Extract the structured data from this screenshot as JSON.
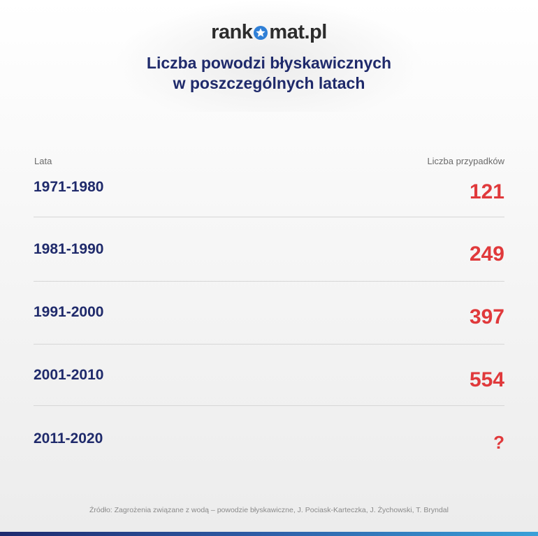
{
  "brand": {
    "logo_left": "rank",
    "logo_right": "mat.pl",
    "logo_star_icon": "star-in-circle-icon"
  },
  "title": {
    "line1": "Liczba powodzi błyskawicznych",
    "line2": "w poszczególnych latach"
  },
  "chart_data": {
    "type": "table",
    "title": "Liczba powodzi błyskawicznych w poszczególnych latach",
    "columns": [
      "Lata",
      "Liczba przypadków"
    ],
    "rows": [
      {
        "period": "1971-1980",
        "value": "121"
      },
      {
        "period": "1981-1990",
        "value": "249"
      },
      {
        "period": "1991-2000",
        "value": "397"
      },
      {
        "period": "2001-2010",
        "value": "554"
      },
      {
        "period": "2011-2020",
        "value": "?"
      }
    ]
  },
  "source": "Źródło: Zagrożenia związane z wodą – powodzie błyskawiczne, J. Pociask-Karteczka, J. Żychowski, T. Bryndal",
  "colors": {
    "title": "#1f2a6b",
    "value": "#e0393b",
    "logo_star": "#2f7fd6"
  }
}
